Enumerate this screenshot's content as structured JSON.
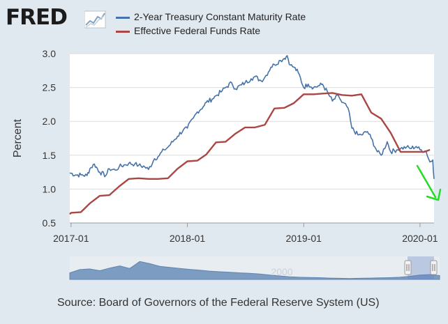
{
  "logo": {
    "text": "FRED",
    "icon": "line-chart-icon"
  },
  "legend": [
    {
      "label": "2-Year Treasury Constant Maturity Rate",
      "color": "#4572a7"
    },
    {
      "label": "Effective Federal Funds Rate",
      "color": "#aa4643"
    }
  ],
  "source": "Source: Board of Governors of the Federal Reserve System (US)",
  "navigator_label": "2000",
  "annotation": {
    "type": "green-arrow",
    "color": "#22dd22"
  },
  "chart_data": {
    "type": "line",
    "ylabel": "Percent",
    "xlabel": "",
    "ylim": [
      0.5,
      3.0
    ],
    "yticks": [
      "0.5",
      "1.0",
      "1.5",
      "2.0",
      "2.5",
      "3.0"
    ],
    "xticks": [
      "2017-01",
      "2018-01",
      "2019-01",
      "2020-01"
    ],
    "xlim": [
      "2016-12-28",
      "2020-02-14"
    ],
    "grid": true,
    "series": [
      {
        "name": "2-Year Treasury Constant Maturity Rate",
        "color": "#4572a7",
        "points": [
          [
            "2016-12-28",
            1.24
          ],
          [
            "2017-01-15",
            1.21
          ],
          [
            "2017-02-01",
            1.21
          ],
          [
            "2017-02-20",
            1.2
          ],
          [
            "2017-03-01",
            1.3
          ],
          [
            "2017-03-15",
            1.37
          ],
          [
            "2017-04-01",
            1.25
          ],
          [
            "2017-04-20",
            1.2
          ],
          [
            "2017-05-01",
            1.3
          ],
          [
            "2017-05-20",
            1.28
          ],
          [
            "2017-06-01",
            1.33
          ],
          [
            "2017-06-20",
            1.36
          ],
          [
            "2017-07-01",
            1.38
          ],
          [
            "2017-07-20",
            1.37
          ],
          [
            "2017-08-01",
            1.35
          ],
          [
            "2017-08-20",
            1.33
          ],
          [
            "2017-09-01",
            1.29
          ],
          [
            "2017-09-20",
            1.45
          ],
          [
            "2017-10-01",
            1.48
          ],
          [
            "2017-10-20",
            1.58
          ],
          [
            "2017-11-01",
            1.62
          ],
          [
            "2017-11-20",
            1.72
          ],
          [
            "2017-12-01",
            1.78
          ],
          [
            "2017-12-20",
            1.88
          ],
          [
            "2018-01-01",
            1.9
          ],
          [
            "2018-01-20",
            2.05
          ],
          [
            "2018-02-01",
            2.14
          ],
          [
            "2018-02-20",
            2.22
          ],
          [
            "2018-03-01",
            2.28
          ],
          [
            "2018-03-20",
            2.33
          ],
          [
            "2018-04-01",
            2.38
          ],
          [
            "2018-04-20",
            2.45
          ],
          [
            "2018-05-01",
            2.5
          ],
          [
            "2018-05-20",
            2.57
          ],
          [
            "2018-06-01",
            2.48
          ],
          [
            "2018-06-20",
            2.54
          ],
          [
            "2018-07-01",
            2.57
          ],
          [
            "2018-07-20",
            2.63
          ],
          [
            "2018-08-01",
            2.66
          ],
          [
            "2018-08-20",
            2.6
          ],
          [
            "2018-09-01",
            2.65
          ],
          [
            "2018-09-20",
            2.8
          ],
          [
            "2018-10-01",
            2.84
          ],
          [
            "2018-10-20",
            2.9
          ],
          [
            "2018-11-01",
            2.93
          ],
          [
            "2018-11-10",
            2.97
          ],
          [
            "2018-11-20",
            2.83
          ],
          [
            "2018-12-01",
            2.8
          ],
          [
            "2018-12-15",
            2.72
          ],
          [
            "2019-01-01",
            2.5
          ],
          [
            "2019-01-15",
            2.55
          ],
          [
            "2019-02-01",
            2.5
          ],
          [
            "2019-02-20",
            2.53
          ],
          [
            "2019-03-01",
            2.55
          ],
          [
            "2019-03-20",
            2.4
          ],
          [
            "2019-04-01",
            2.3
          ],
          [
            "2019-04-20",
            2.38
          ],
          [
            "2019-05-01",
            2.28
          ],
          [
            "2019-05-20",
            2.2
          ],
          [
            "2019-06-01",
            1.9
          ],
          [
            "2019-06-20",
            1.8
          ],
          [
            "2019-07-01",
            1.8
          ],
          [
            "2019-07-20",
            1.85
          ],
          [
            "2019-08-01",
            1.75
          ],
          [
            "2019-08-20",
            1.55
          ],
          [
            "2019-09-01",
            1.5
          ],
          [
            "2019-09-20",
            1.7
          ],
          [
            "2019-10-01",
            1.55
          ],
          [
            "2019-10-20",
            1.58
          ],
          [
            "2019-11-01",
            1.6
          ],
          [
            "2019-11-20",
            1.62
          ],
          [
            "2019-12-01",
            1.6
          ],
          [
            "2019-12-20",
            1.63
          ],
          [
            "2020-01-01",
            1.58
          ],
          [
            "2020-01-20",
            1.56
          ],
          [
            "2020-02-01",
            1.4
          ],
          [
            "2020-02-10",
            1.43
          ],
          [
            "2020-02-14",
            1.15
          ]
        ]
      },
      {
        "name": "Effective Federal Funds Rate",
        "color": "#aa4643",
        "points": [
          [
            "2016-12-28",
            0.63
          ],
          [
            "2017-01-01",
            0.65
          ],
          [
            "2017-02-01",
            0.66
          ],
          [
            "2017-03-01",
            0.79
          ],
          [
            "2017-04-01",
            0.9
          ],
          [
            "2017-05-01",
            0.91
          ],
          [
            "2017-06-01",
            1.04
          ],
          [
            "2017-07-01",
            1.15
          ],
          [
            "2017-08-01",
            1.16
          ],
          [
            "2017-09-01",
            1.15
          ],
          [
            "2017-10-01",
            1.15
          ],
          [
            "2017-11-01",
            1.16
          ],
          [
            "2017-12-01",
            1.3
          ],
          [
            "2018-01-01",
            1.41
          ],
          [
            "2018-02-01",
            1.42
          ],
          [
            "2018-03-01",
            1.51
          ],
          [
            "2018-04-01",
            1.69
          ],
          [
            "2018-05-01",
            1.7
          ],
          [
            "2018-06-01",
            1.82
          ],
          [
            "2018-07-01",
            1.91
          ],
          [
            "2018-08-01",
            1.91
          ],
          [
            "2018-09-01",
            1.95
          ],
          [
            "2018-10-01",
            2.19
          ],
          [
            "2018-11-01",
            2.2
          ],
          [
            "2018-12-01",
            2.27
          ],
          [
            "2019-01-01",
            2.4
          ],
          [
            "2019-02-01",
            2.4
          ],
          [
            "2019-03-01",
            2.41
          ],
          [
            "2019-04-01",
            2.42
          ],
          [
            "2019-05-01",
            2.39
          ],
          [
            "2019-06-01",
            2.38
          ],
          [
            "2019-07-01",
            2.4
          ],
          [
            "2019-08-01",
            2.13
          ],
          [
            "2019-09-01",
            2.04
          ],
          [
            "2019-10-01",
            1.83
          ],
          [
            "2019-11-01",
            1.55
          ],
          [
            "2019-12-01",
            1.55
          ],
          [
            "2020-01-01",
            1.55
          ],
          [
            "2020-01-15",
            1.55
          ],
          [
            "2020-02-01",
            1.58
          ]
        ]
      }
    ],
    "navigator": {
      "values": [
        0.3,
        0.45,
        0.48,
        0.4,
        0.52,
        0.62,
        0.5,
        0.82,
        0.72,
        0.6,
        0.55,
        0.5,
        0.46,
        0.42,
        0.38,
        0.35,
        0.33,
        0.3,
        0.28,
        0.25,
        0.2,
        0.16,
        0.12,
        0.1,
        0.09,
        0.08,
        0.06,
        0.05,
        0.04,
        0.05,
        0.06,
        0.07,
        0.08,
        0.1,
        0.14,
        0.2,
        0.22,
        0.18
      ]
    }
  }
}
